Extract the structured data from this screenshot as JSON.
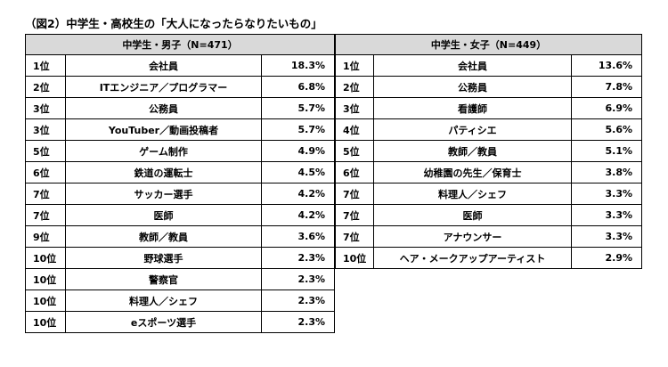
{
  "title": "（図2）中学生・高校生の「大人になったらなりたいもの」",
  "boys": {
    "header": "中学生・男子（N=471）",
    "rows": [
      {
        "rank": "1位",
        "job": "会社員",
        "pct": "18.3%"
      },
      {
        "rank": "2位",
        "job": "ITエンジニア／プログラマー",
        "pct": "6.8%"
      },
      {
        "rank": "3位",
        "job": "公務員",
        "pct": "5.7%"
      },
      {
        "rank": "3位",
        "job": "YouTuber／動画投稿者",
        "pct": "5.7%"
      },
      {
        "rank": "5位",
        "job": "ゲーム制作",
        "pct": "4.9%"
      },
      {
        "rank": "6位",
        "job": "鉄道の運転士",
        "pct": "4.5%"
      },
      {
        "rank": "7位",
        "job": "サッカー選手",
        "pct": "4.2%"
      },
      {
        "rank": "7位",
        "job": "医師",
        "pct": "4.2%"
      },
      {
        "rank": "9位",
        "job": "教師／教員",
        "pct": "3.6%"
      },
      {
        "rank": "10位",
        "job": "野球選手",
        "pct": "2.3%"
      },
      {
        "rank": "10位",
        "job": "警察官",
        "pct": "2.3%"
      },
      {
        "rank": "10位",
        "job": "料理人／シェフ",
        "pct": "2.3%"
      },
      {
        "rank": "10位",
        "job": "eスポーツ選手",
        "pct": "2.3%"
      }
    ]
  },
  "girls": {
    "header": "中学生・女子（N=449）",
    "rows": [
      {
        "rank": "1位",
        "job": "会社員",
        "pct": "13.6%"
      },
      {
        "rank": "2位",
        "job": "公務員",
        "pct": "7.8%"
      },
      {
        "rank": "3位",
        "job": "看護師",
        "pct": "6.9%"
      },
      {
        "rank": "4位",
        "job": "パティシエ",
        "pct": "5.6%"
      },
      {
        "rank": "5位",
        "job": "教師／教員",
        "pct": "5.1%"
      },
      {
        "rank": "6位",
        "job": "幼稚園の先生／保育士",
        "pct": "3.8%"
      },
      {
        "rank": "7位",
        "job": "料理人／シェフ",
        "pct": "3.3%"
      },
      {
        "rank": "7位",
        "job": "医師",
        "pct": "3.3%"
      },
      {
        "rank": "7位",
        "job": "アナウンサー",
        "pct": "3.3%"
      },
      {
        "rank": "10位",
        "job": "ヘア・メークアップアーティスト",
        "pct": "2.9%"
      }
    ]
  }
}
